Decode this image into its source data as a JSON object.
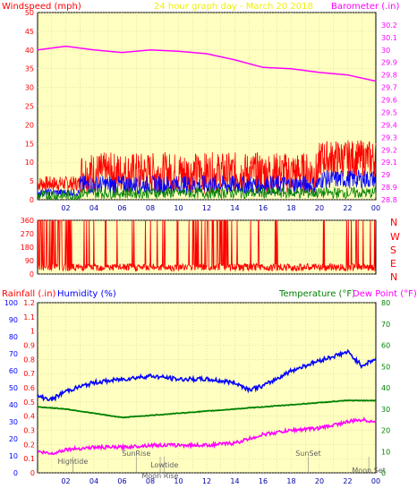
{
  "header": {
    "left_label": "Windspeed (mph)",
    "title": "24 hour graph day - March 20 2018",
    "right_label": "Barometer (.in)"
  },
  "colors": {
    "background": "#ffffc0",
    "red": "#ff0000",
    "blue": "#0000ff",
    "green": "#008000",
    "magenta": "#ff00ff",
    "yellow": "#f0f000",
    "frame_bg": "#ffffff"
  },
  "x_ticks": [
    "02",
    "04",
    "06",
    "08",
    "10",
    "12",
    "14",
    "16",
    "18",
    "20",
    "22",
    "00"
  ],
  "wind_chart": {
    "type": "line",
    "left_axis": {
      "label": "Windspeed (mph)",
      "range": [
        0,
        50
      ],
      "ticks": [
        "0",
        "5",
        "10",
        "15",
        "20",
        "25",
        "30",
        "35",
        "40",
        "45",
        "50"
      ]
    },
    "right_axis": {
      "label": "Barometer (.in)",
      "range": [
        28.8,
        30.3
      ],
      "ticks": [
        "28.8",
        "28.9",
        "29",
        "29.1",
        "29.2",
        "29.3",
        "29.4",
        "29.5",
        "29.6",
        "29.7",
        "29.8",
        "29.9",
        "30",
        "30.1",
        "30.2"
      ]
    },
    "series": [
      {
        "name": "Barometer (.in)",
        "color": "#ff00ff",
        "x": [
          0,
          2,
          4,
          6,
          8,
          10,
          12,
          14,
          16,
          18,
          20,
          22,
          24
        ],
        "values": [
          30.0,
          30.03,
          30.0,
          29.98,
          30.0,
          29.99,
          29.97,
          29.92,
          29.86,
          29.85,
          29.82,
          29.8,
          29.75
        ]
      }
    ]
  },
  "direction_chart": {
    "type": "line",
    "left_axis": {
      "range": [
        0,
        360
      ],
      "ticks": [
        "0",
        "90",
        "180",
        "270",
        "360"
      ]
    },
    "right_axis_labels": [
      "N",
      "W",
      "S",
      "E",
      "N"
    ]
  },
  "lower_chart": {
    "type": "line",
    "left_labels": {
      "rain": "Rainfall (.in)",
      "humidity": "Humidity (%)"
    },
    "right_labels": {
      "temperature": "Temperature (°F)",
      "dewpoint": "Dew Point (°F)"
    },
    "rain_axis": {
      "range": [
        0,
        1.2
      ],
      "ticks": [
        "0",
        "0.1",
        "0.2",
        "0.3",
        "0.4",
        "0.5",
        "0.6",
        "0.7",
        "0.8",
        "0.9",
        "1",
        "1.1",
        "1.2"
      ]
    },
    "humidity_axis": {
      "range": [
        0,
        100
      ],
      "ticks": [
        "0",
        "10",
        "20",
        "30",
        "40",
        "50",
        "60",
        "70",
        "80",
        "90",
        "100"
      ]
    },
    "temp_axis": {
      "range": [
        0,
        80
      ],
      "ticks": [
        "0",
        "10",
        "20",
        "30",
        "40",
        "50",
        "60",
        "70",
        "80"
      ]
    },
    "series": [
      {
        "name": "Humidity (%)",
        "color": "#0000ff",
        "x": [
          0,
          1,
          2,
          4,
          6,
          8,
          10,
          12,
          14,
          15,
          16,
          18,
          20,
          22,
          23,
          24
        ],
        "values": [
          45,
          43,
          48,
          53,
          55,
          57,
          55,
          55,
          53,
          49,
          51,
          60,
          66,
          71,
          63,
          67
        ]
      },
      {
        "name": "Temperature (°F)",
        "color": "#008000",
        "x": [
          0,
          2,
          4,
          6,
          8,
          10,
          12,
          14,
          16,
          18,
          20,
          22,
          24
        ],
        "values": [
          31,
          30,
          28,
          26,
          27,
          28,
          29,
          30,
          31,
          32,
          33,
          34,
          34
        ]
      },
      {
        "name": "Dew Point (°F)",
        "color": "#ff00ff",
        "x": [
          0,
          1,
          2,
          4,
          6,
          8,
          10,
          12,
          14,
          16,
          18,
          20,
          22,
          23,
          24
        ],
        "values": [
          10,
          9,
          11,
          12,
          12,
          13,
          13,
          13,
          14,
          18,
          20,
          21,
          24,
          25,
          24
        ]
      }
    ],
    "events": [
      {
        "label": "Hightide",
        "hour": 2.5
      },
      {
        "label": "SunRise",
        "hour": 7.0
      },
      {
        "label": "Lowtide",
        "hour": 9.0
      },
      {
        "label": "Moon Rise",
        "hour": 8.7
      },
      {
        "label": "SunSet",
        "hour": 19.2
      },
      {
        "label": "Moon Set",
        "hour": 23.5
      }
    ]
  }
}
